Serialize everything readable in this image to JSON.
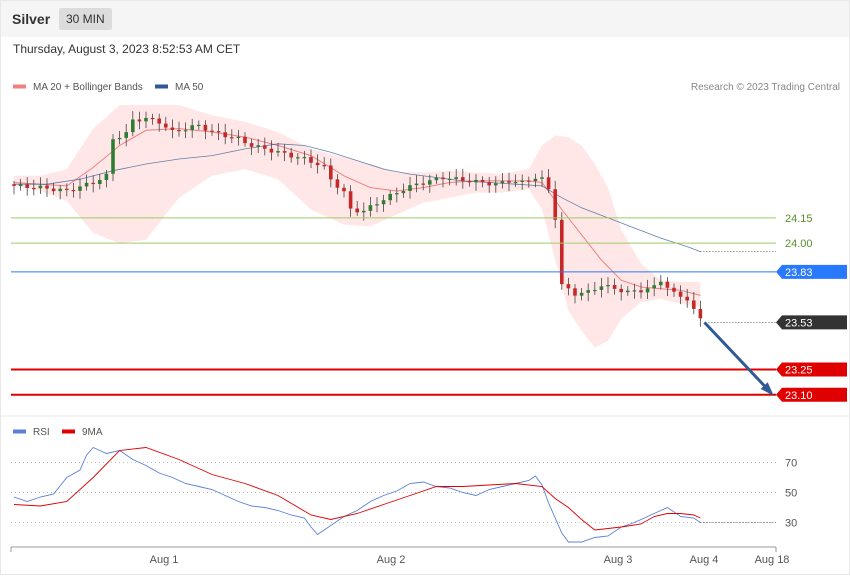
{
  "header": {
    "symbol": "Silver",
    "timeframe": "30 MIN",
    "datetime": "Thursday, August 3, 2023 8:52:53 AM CET"
  },
  "price_legend": [
    {
      "label": "MA 20 + Bollinger Bands",
      "color": "#f08080"
    },
    {
      "label": "MA 50",
      "color": "#2f5a96"
    }
  ],
  "credit": "Research © 2023 Trading Central",
  "rsi_legend": [
    {
      "label": "RSI",
      "color": "#5b7fd6"
    },
    {
      "label": "9MA",
      "color": "#e00000"
    }
  ],
  "chart_data": [
    {
      "type": "candlestick",
      "y_range": [
        22.98,
        24.85
      ],
      "levels": [
        {
          "value": "24.15",
          "kind": "resistance",
          "color": "#9ccc65"
        },
        {
          "value": "24.00",
          "kind": "resistance",
          "color": "#9ccc65"
        },
        {
          "value": "23.83",
          "kind": "pivot",
          "color": "#2979ff"
        },
        {
          "value": "23.53",
          "kind": "last",
          "color": "#333333"
        },
        {
          "value": "23.25",
          "kind": "support",
          "color": "#e00000"
        },
        {
          "value": "23.10",
          "kind": "support",
          "color": "#e00000"
        }
      ],
      "close_path": [
        [
          0,
          24.34
        ],
        [
          4,
          24.33
        ],
        [
          8,
          24.31
        ],
        [
          12,
          24.36
        ],
        [
          14,
          24.4
        ],
        [
          15,
          24.62
        ],
        [
          17,
          24.65
        ],
        [
          18,
          24.73
        ],
        [
          20,
          24.74
        ],
        [
          22,
          24.72
        ],
        [
          24,
          24.66
        ],
        [
          26,
          24.68
        ],
        [
          28,
          24.7
        ],
        [
          30,
          24.66
        ],
        [
          32,
          24.64
        ],
        [
          34,
          24.62
        ],
        [
          36,
          24.58
        ],
        [
          38,
          24.56
        ],
        [
          40,
          24.54
        ],
        [
          42,
          24.52
        ],
        [
          44,
          24.5
        ],
        [
          46,
          24.47
        ],
        [
          47,
          24.45
        ],
        [
          48,
          24.38
        ],
        [
          50,
          24.3
        ],
        [
          51,
          24.2
        ],
        [
          53,
          24.19
        ],
        [
          55,
          24.24
        ],
        [
          57,
          24.28
        ],
        [
          59,
          24.32
        ],
        [
          61,
          24.35
        ],
        [
          63,
          24.37
        ],
        [
          65,
          24.39
        ],
        [
          67,
          24.38
        ],
        [
          69,
          24.37
        ],
        [
          71,
          24.36
        ],
        [
          73,
          24.35
        ],
        [
          75,
          24.37
        ],
        [
          77,
          24.36
        ],
        [
          79,
          24.39
        ],
        [
          80,
          24.38
        ],
        [
          81,
          24.32
        ],
        [
          82,
          24.15
        ],
        [
          83,
          23.75
        ],
        [
          85,
          23.7
        ],
        [
          87,
          23.71
        ],
        [
          89,
          23.75
        ],
        [
          91,
          23.73
        ],
        [
          93,
          23.71
        ],
        [
          95,
          23.72
        ],
        [
          97,
          23.74
        ],
        [
          98,
          23.78
        ],
        [
          100,
          23.7
        ],
        [
          102,
          23.67
        ],
        [
          103,
          23.6
        ],
        [
          104,
          23.55
        ]
      ],
      "ma20": [
        [
          0,
          24.36
        ],
        [
          4,
          24.35
        ],
        [
          8,
          24.34
        ],
        [
          12,
          24.45
        ],
        [
          16,
          24.58
        ],
        [
          20,
          24.67
        ],
        [
          25,
          24.68
        ],
        [
          30,
          24.66
        ],
        [
          35,
          24.63
        ],
        [
          40,
          24.58
        ],
        [
          45,
          24.52
        ],
        [
          50,
          24.4
        ],
        [
          54,
          24.33
        ],
        [
          58,
          24.31
        ],
        [
          62,
          24.33
        ],
        [
          66,
          24.36
        ],
        [
          70,
          24.37
        ],
        [
          74,
          24.37
        ],
        [
          78,
          24.37
        ],
        [
          80,
          24.36
        ],
        [
          83,
          24.2
        ],
        [
          86,
          24.05
        ],
        [
          89,
          23.9
        ],
        [
          92,
          23.78
        ],
        [
          95,
          23.74
        ],
        [
          98,
          23.73
        ],
        [
          101,
          23.72
        ],
        [
          104,
          23.69
        ]
      ],
      "ma50": [
        [
          0,
          24.35
        ],
        [
          5,
          24.35
        ],
        [
          10,
          24.38
        ],
        [
          15,
          24.43
        ],
        [
          20,
          24.47
        ],
        [
          25,
          24.5
        ],
        [
          30,
          24.52
        ],
        [
          35,
          24.56
        ],
        [
          40,
          24.59
        ],
        [
          44,
          24.58
        ],
        [
          48,
          24.54
        ],
        [
          52,
          24.49
        ],
        [
          56,
          24.44
        ],
        [
          60,
          24.41
        ],
        [
          64,
          24.39
        ],
        [
          68,
          24.37
        ],
        [
          72,
          24.36
        ],
        [
          76,
          24.35
        ],
        [
          80,
          24.34
        ],
        [
          83,
          24.27
        ],
        [
          86,
          24.21
        ],
        [
          90,
          24.15
        ],
        [
          94,
          24.09
        ],
        [
          98,
          24.03
        ],
        [
          102,
          23.98
        ],
        [
          104,
          23.95
        ]
      ],
      "bollinger_upper": [
        [
          0,
          24.4
        ],
        [
          4,
          24.4
        ],
        [
          8,
          24.44
        ],
        [
          12,
          24.68
        ],
        [
          16,
          24.82
        ],
        [
          20,
          24.82
        ],
        [
          25,
          24.82
        ],
        [
          30,
          24.76
        ],
        [
          35,
          24.72
        ],
        [
          40,
          24.66
        ],
        [
          45,
          24.56
        ],
        [
          50,
          24.51
        ],
        [
          54,
          24.47
        ],
        [
          58,
          24.42
        ],
        [
          62,
          24.42
        ],
        [
          66,
          24.43
        ],
        [
          70,
          24.42
        ],
        [
          74,
          24.41
        ],
        [
          78,
          24.44
        ],
        [
          80,
          24.58
        ],
        [
          82,
          24.64
        ],
        [
          84,
          24.63
        ],
        [
          86,
          24.58
        ],
        [
          88,
          24.47
        ],
        [
          90,
          24.33
        ],
        [
          92,
          24.08
        ],
        [
          95,
          23.88
        ],
        [
          98,
          23.78
        ],
        [
          101,
          23.77
        ],
        [
          104,
          23.77
        ]
      ],
      "bollinger_lower": [
        [
          0,
          24.34
        ],
        [
          4,
          24.31
        ],
        [
          8,
          24.25
        ],
        [
          12,
          24.06
        ],
        [
          16,
          24.0
        ],
        [
          20,
          24.02
        ],
        [
          25,
          24.27
        ],
        [
          30,
          24.4
        ],
        [
          35,
          24.44
        ],
        [
          40,
          24.38
        ],
        [
          45,
          24.2
        ],
        [
          50,
          24.11
        ],
        [
          54,
          24.1
        ],
        [
          58,
          24.17
        ],
        [
          62,
          24.24
        ],
        [
          66,
          24.27
        ],
        [
          70,
          24.3
        ],
        [
          74,
          24.3
        ],
        [
          78,
          24.32
        ],
        [
          80,
          24.2
        ],
        [
          82,
          23.9
        ],
        [
          84,
          23.6
        ],
        [
          86,
          23.48
        ],
        [
          88,
          23.38
        ],
        [
          90,
          23.42
        ],
        [
          92,
          23.55
        ],
        [
          95,
          23.65
        ],
        [
          98,
          23.67
        ],
        [
          101,
          23.64
        ],
        [
          104,
          23.62
        ]
      ],
      "projection": {
        "from": [
          104,
          23.53
        ],
        "to": [
          115,
          23.1
        ]
      }
    },
    {
      "type": "line",
      "y_range": [
        15,
        85
      ],
      "yticks": [
        30,
        50,
        70
      ],
      "xticks": [
        "Aug 1",
        "Aug 2",
        "Aug 3",
        "Aug 4",
        "Aug 18"
      ],
      "series": [
        {
          "name": "RSI",
          "values": [
            [
              0,
              47
            ],
            [
              2,
              44
            ],
            [
              4,
              47
            ],
            [
              6,
              49
            ],
            [
              8,
              60
            ],
            [
              10,
              65
            ],
            [
              11,
              75
            ],
            [
              12,
              80
            ],
            [
              14,
              76
            ],
            [
              16,
              78
            ],
            [
              18,
              72
            ],
            [
              20,
              68
            ],
            [
              22,
              63
            ],
            [
              24,
              60
            ],
            [
              26,
              56
            ],
            [
              28,
              54
            ],
            [
              30,
              52
            ],
            [
              32,
              48
            ],
            [
              34,
              44
            ],
            [
              36,
              41
            ],
            [
              38,
              40
            ],
            [
              40,
              38
            ],
            [
              42,
              35
            ],
            [
              44,
              33
            ],
            [
              45,
              27
            ],
            [
              46,
              22
            ],
            [
              48,
              28
            ],
            [
              50,
              34
            ],
            [
              52,
              38
            ],
            [
              54,
              44
            ],
            [
              56,
              48
            ],
            [
              58,
              51
            ],
            [
              60,
              56
            ],
            [
              62,
              57
            ],
            [
              64,
              54
            ],
            [
              66,
              53
            ],
            [
              68,
              50
            ],
            [
              70,
              48
            ],
            [
              72,
              52
            ],
            [
              74,
              54
            ],
            [
              76,
              56
            ],
            [
              78,
              58
            ],
            [
              79,
              61
            ],
            [
              80,
              55
            ],
            [
              81,
              43
            ],
            [
              82,
              33
            ],
            [
              83,
              23
            ],
            [
              84,
              17
            ],
            [
              86,
              17
            ],
            [
              88,
              20
            ],
            [
              90,
              21
            ],
            [
              92,
              27
            ],
            [
              94,
              30
            ],
            [
              96,
              34
            ],
            [
              97,
              36
            ],
            [
              99,
              40
            ],
            [
              101,
              34
            ],
            [
              103,
              33
            ],
            [
              104,
              30
            ]
          ]
        },
        {
          "name": "9MA",
          "values": [
            [
              0,
              42
            ],
            [
              4,
              41
            ],
            [
              8,
              44
            ],
            [
              12,
              60
            ],
            [
              16,
              78
            ],
            [
              20,
              80
            ],
            [
              25,
              72
            ],
            [
              30,
              62
            ],
            [
              35,
              56
            ],
            [
              40,
              48
            ],
            [
              45,
              35
            ],
            [
              48,
              32
            ],
            [
              52,
              36
            ],
            [
              56,
              42
            ],
            [
              60,
              48
            ],
            [
              64,
              54
            ],
            [
              68,
              54
            ],
            [
              72,
              55
            ],
            [
              76,
              56
            ],
            [
              80,
              54
            ],
            [
              82,
              46
            ],
            [
              84,
              40
            ],
            [
              86,
              32
            ],
            [
              88,
              25
            ],
            [
              90,
              26
            ],
            [
              92,
              27
            ],
            [
              95,
              29
            ],
            [
              97,
              34
            ],
            [
              99,
              36
            ],
            [
              101,
              36
            ],
            [
              103,
              35
            ],
            [
              104,
              33
            ]
          ]
        }
      ]
    }
  ]
}
